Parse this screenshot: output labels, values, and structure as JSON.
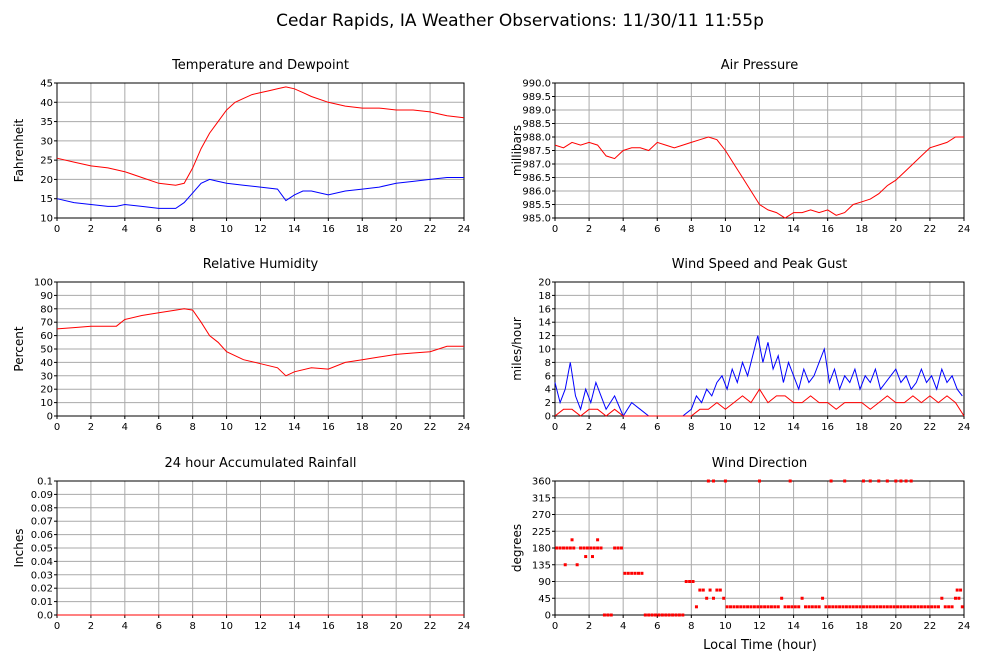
{
  "title": "Cedar Rapids, IA Weather Observations: 11/30/11 11:55p",
  "xlabel": "Local Time (hour)",
  "colors": {
    "red": "#ff0000",
    "blue": "#0000ff",
    "grid": "#aaaaaa"
  },
  "chart_data": [
    {
      "id": "temp",
      "type": "line",
      "title": "Temperature and Dewpoint",
      "ylabel": "Fahrenheit",
      "xlim": [
        0,
        24
      ],
      "ylim": [
        10,
        45
      ],
      "yticks": [
        "10",
        "15",
        "20",
        "25",
        "30",
        "35",
        "40",
        "45"
      ],
      "xticks": [
        "0",
        "2",
        "4",
        "6",
        "8",
        "10",
        "12",
        "14",
        "16",
        "18",
        "20",
        "22",
        "24"
      ],
      "grid": true,
      "series": [
        {
          "color": "#ff0000",
          "x": [
            0,
            1,
            2,
            3,
            4,
            5,
            6,
            7,
            7.5,
            8,
            8.5,
            9,
            9.5,
            10,
            10.5,
            11,
            11.5,
            12,
            12.5,
            13,
            13.5,
            14,
            14.5,
            15,
            16,
            17,
            18,
            19,
            20,
            21,
            22,
            22.5,
            23,
            24
          ],
          "y": [
            25.5,
            24.5,
            23.5,
            23,
            22,
            20.5,
            19,
            18.5,
            19,
            23,
            28,
            32,
            35,
            38,
            40,
            41,
            42,
            42.5,
            43,
            43.5,
            44,
            43.5,
            42.5,
            41.5,
            40,
            39,
            38.5,
            38.5,
            38,
            38,
            37.5,
            37,
            36.5,
            36
          ]
        },
        {
          "color": "#0000ff",
          "x": [
            0,
            1,
            2,
            3,
            3.5,
            4,
            5,
            6,
            7,
            7.5,
            8,
            8.5,
            9,
            9.5,
            10,
            11,
            12,
            13,
            13.5,
            14,
            14.5,
            15,
            16,
            17,
            18,
            19,
            20,
            21,
            22,
            23,
            24
          ],
          "y": [
            15,
            14,
            13.5,
            13,
            13,
            13.5,
            13,
            12.5,
            12.5,
            14,
            16.5,
            19,
            20,
            19.5,
            19,
            18.5,
            18,
            17.5,
            14.5,
            16,
            17,
            17,
            16,
            17,
            17.5,
            18,
            19,
            19.5,
            20,
            20.5,
            20.5
          ]
        }
      ]
    },
    {
      "id": "pressure",
      "type": "line",
      "title": "Air Pressure",
      "ylabel": "millibars",
      "xlim": [
        0,
        24
      ],
      "ylim": [
        985.0,
        990.0
      ],
      "yticks": [
        "985.0",
        "985.5",
        "986.0",
        "986.5",
        "987.0",
        "987.5",
        "988.0",
        "988.5",
        "989.0",
        "989.5",
        "990.0"
      ],
      "xticks": [
        "0",
        "2",
        "4",
        "6",
        "8",
        "10",
        "12",
        "14",
        "16",
        "18",
        "20",
        "22",
        "24"
      ],
      "grid": true,
      "series": [
        {
          "color": "#ff0000",
          "x": [
            0,
            0.5,
            1,
            1.5,
            2,
            2.5,
            3,
            3.5,
            4,
            4.5,
            5,
            5.5,
            6,
            6.5,
            7,
            7.5,
            8,
            8.5,
            9,
            9.5,
            10,
            10.5,
            11,
            11.5,
            12,
            12.5,
            13,
            13.5,
            14,
            14.5,
            15,
            15.5,
            16,
            16.5,
            17,
            17.5,
            18,
            18.5,
            19,
            19.5,
            20,
            20.5,
            21,
            21.5,
            22,
            22.5,
            23,
            23.5,
            24
          ],
          "y": [
            987.7,
            987.6,
            987.8,
            987.7,
            987.8,
            987.7,
            987.3,
            987.2,
            987.5,
            987.6,
            987.6,
            987.5,
            987.8,
            987.7,
            987.6,
            987.7,
            987.8,
            987.9,
            988.0,
            987.9,
            987.5,
            987.0,
            986.5,
            986.0,
            985.5,
            985.3,
            985.2,
            985.0,
            985.2,
            985.2,
            985.3,
            985.2,
            985.3,
            985.1,
            985.2,
            985.5,
            985.6,
            985.7,
            985.9,
            986.2,
            986.4,
            986.7,
            987.0,
            987.3,
            987.6,
            987.7,
            987.8,
            988.0,
            988.0
          ]
        }
      ]
    },
    {
      "id": "humidity",
      "type": "line",
      "title": "Relative Humidity",
      "ylabel": "Percent",
      "xlim": [
        0,
        24
      ],
      "ylim": [
        0,
        100
      ],
      "yticks": [
        "0",
        "10",
        "20",
        "30",
        "40",
        "50",
        "60",
        "70",
        "80",
        "90",
        "100"
      ],
      "xticks": [
        "0",
        "2",
        "4",
        "6",
        "8",
        "10",
        "12",
        "14",
        "16",
        "18",
        "20",
        "22",
        "24"
      ],
      "grid": true,
      "series": [
        {
          "color": "#ff0000",
          "x": [
            0,
            1,
            2,
            3,
            3.5,
            4,
            5,
            6,
            7,
            7.5,
            8,
            8.5,
            9,
            9.5,
            10,
            11,
            12,
            13,
            13.5,
            14,
            15,
            16,
            17,
            18,
            19,
            20,
            21,
            22,
            23,
            24
          ],
          "y": [
            65,
            66,
            67,
            67,
            67,
            72,
            75,
            77,
            79,
            80,
            79,
            70,
            60,
            55,
            48,
            42,
            39,
            36,
            30,
            33,
            36,
            35,
            40,
            42,
            44,
            46,
            47,
            48,
            52,
            52
          ]
        }
      ]
    },
    {
      "id": "wind",
      "type": "line",
      "title": "Wind Speed and Peak Gust",
      "ylabel": "miles/hour",
      "xlim": [
        0,
        24
      ],
      "ylim": [
        0,
        20
      ],
      "yticks": [
        "0",
        "2",
        "4",
        "6",
        "8",
        "10",
        "12",
        "14",
        "16",
        "18",
        "20"
      ],
      "xticks": [
        "0",
        "2",
        "4",
        "6",
        "8",
        "10",
        "12",
        "14",
        "16",
        "18",
        "20",
        "22",
        "24"
      ],
      "grid": true,
      "series": [
        {
          "color": "#0000ff",
          "x": [
            0,
            0.3,
            0.6,
            0.9,
            1.2,
            1.5,
            1.8,
            2.1,
            2.4,
            2.7,
            3.0,
            3.5,
            4.0,
            4.5,
            5.0,
            5.5,
            6,
            7,
            7.5,
            8.0,
            8.3,
            8.6,
            8.9,
            9.2,
            9.5,
            9.8,
            10.1,
            10.4,
            10.7,
            11.0,
            11.3,
            11.6,
            11.9,
            12.2,
            12.5,
            12.8,
            13.1,
            13.4,
            13.7,
            14.0,
            14.3,
            14.6,
            14.9,
            15.2,
            15.5,
            15.8,
            16.1,
            16.4,
            16.7,
            17.0,
            17.3,
            17.6,
            17.9,
            18.2,
            18.5,
            18.8,
            19.1,
            19.4,
            19.7,
            20.0,
            20.3,
            20.6,
            20.9,
            21.2,
            21.5,
            21.8,
            22.1,
            22.4,
            22.7,
            23.0,
            23.3,
            23.6,
            23.9
          ],
          "y": [
            5,
            2,
            4,
            8,
            3,
            1,
            4,
            2,
            5,
            3,
            1,
            3,
            0,
            2,
            1,
            0,
            0,
            0,
            0,
            1,
            3,
            2,
            4,
            3,
            5,
            6,
            4,
            7,
            5,
            8,
            6,
            9,
            12,
            8,
            11,
            7,
            9,
            5,
            8,
            6,
            4,
            7,
            5,
            6,
            8,
            10,
            5,
            7,
            4,
            6,
            5,
            7,
            4,
            6,
            5,
            7,
            4,
            5,
            6,
            7,
            5,
            6,
            4,
            5,
            7,
            5,
            6,
            4,
            7,
            5,
            6,
            4,
            3
          ]
        },
        {
          "color": "#ff0000",
          "x": [
            0,
            0.5,
            1,
            1.5,
            2,
            2.5,
            3,
            3.5,
            4,
            5,
            6,
            7,
            8,
            8.5,
            9,
            9.5,
            10,
            10.5,
            11,
            11.5,
            12,
            12.5,
            13,
            13.5,
            14,
            14.5,
            15,
            15.5,
            16,
            16.5,
            17,
            17.5,
            18,
            18.5,
            19,
            19.5,
            20,
            20.5,
            21,
            21.5,
            22,
            22.5,
            23,
            23.5,
            24
          ],
          "y": [
            0,
            1,
            1,
            0,
            1,
            1,
            0,
            1,
            0,
            0,
            0,
            0,
            0,
            1,
            1,
            2,
            1,
            2,
            3,
            2,
            4,
            2,
            3,
            3,
            2,
            2,
            3,
            2,
            2,
            1,
            2,
            2,
            2,
            1,
            2,
            3,
            2,
            2,
            3,
            2,
            3,
            2,
            3,
            2,
            0
          ]
        }
      ]
    },
    {
      "id": "rain",
      "type": "line",
      "title": "24 hour Accumulated Rainfall",
      "ylabel": "Inches",
      "xlim": [
        0,
        24
      ],
      "ylim": [
        0.0,
        0.1
      ],
      "yticks": [
        "0.0",
        "0.01",
        "0.02",
        "0.03",
        "0.04",
        "0.05",
        "0.06",
        "0.07",
        "0.08",
        "0.09",
        "0.1"
      ],
      "xticks": [
        "0",
        "2",
        "4",
        "6",
        "8",
        "10",
        "12",
        "14",
        "16",
        "18",
        "20",
        "22",
        "24"
      ],
      "grid": true,
      "series": [
        {
          "color": "#ff0000",
          "x": [
            0,
            24
          ],
          "y": [
            0,
            0
          ]
        }
      ]
    },
    {
      "id": "direction",
      "type": "scatter",
      "title": "Wind Direction",
      "ylabel": "degrees",
      "xlim": [
        0,
        24
      ],
      "ylim": [
        0,
        360
      ],
      "yticks": [
        "0",
        "45",
        "90",
        "135",
        "180",
        "225",
        "270",
        "315",
        "360"
      ],
      "xticks": [
        "0",
        "2",
        "4",
        "6",
        "8",
        "10",
        "12",
        "14",
        "16",
        "18",
        "20",
        "22",
        "24"
      ],
      "grid": true,
      "series": [
        {
          "color": "#ff0000",
          "x": [
            0.1,
            0.3,
            0.5,
            0.7,
            0.9,
            1.1,
            1.3,
            1.5,
            1.7,
            1.9,
            2.1,
            2.3,
            2.5,
            2.7,
            2.9,
            3.1,
            3.3,
            3.5,
            3.7,
            3.9,
            4.1,
            4.3,
            4.5,
            4.7,
            4.9,
            5.1,
            5.3,
            5.5,
            5.7,
            5.9,
            6.1,
            6.3,
            6.5,
            6.7,
            6.9,
            7.1,
            7.3,
            7.5,
            7.7,
            7.9,
            8.1,
            8.3,
            8.5,
            8.7,
            8.9,
            9.1,
            9.3,
            9.5,
            9.7,
            9.9,
            10.1,
            10.3,
            10.5,
            10.7,
            10.9,
            11.1,
            11.3,
            11.5,
            11.7,
            11.9,
            12.1,
            12.3,
            12.5,
            12.7,
            12.9,
            13.1,
            13.3,
            13.5,
            13.7,
            13.9,
            14.1,
            14.3,
            14.5,
            14.7,
            14.9,
            15.1,
            15.3,
            15.5,
            15.7,
            15.9,
            16.1,
            16.3,
            16.5,
            16.7,
            16.9,
            17.1,
            17.3,
            17.5,
            17.7,
            17.9,
            18.1,
            18.3,
            18.5,
            18.7,
            18.9,
            19.1,
            19.3,
            19.5,
            19.7,
            19.9,
            20.1,
            20.3,
            20.5,
            20.7,
            20.9,
            21.1,
            21.3,
            21.5,
            21.7,
            21.9,
            22.1,
            22.3,
            22.5,
            22.7,
            22.9,
            23.1,
            23.3,
            23.5,
            23.7,
            23.9,
            9.0,
            9.3,
            10.0,
            12.0,
            13.8,
            16.2,
            17.0,
            18.1,
            18.5,
            19.0,
            19.5,
            20.0,
            20.3,
            20.6,
            20.9,
            0.6,
            1.0,
            1.8,
            2.2,
            2.5,
            23.6,
            23.8
          ],
          "y": [
            180,
            180,
            180,
            180,
            180,
            180,
            135,
            180,
            180,
            180,
            180,
            180,
            180,
            180,
            0,
            0,
            0,
            180,
            180,
            180,
            112,
            112,
            112,
            112,
            112,
            112,
            0,
            0,
            0,
            0,
            0,
            0,
            0,
            0,
            0,
            0,
            0,
            0,
            90,
            90,
            90,
            22,
            67,
            67,
            45,
            67,
            45,
            67,
            67,
            45,
            22,
            22,
            22,
            22,
            22,
            22,
            22,
            22,
            22,
            22,
            22,
            22,
            22,
            22,
            22,
            22,
            45,
            22,
            22,
            22,
            22,
            22,
            45,
            22,
            22,
            22,
            22,
            22,
            45,
            22,
            22,
            22,
            22,
            22,
            22,
            22,
            22,
            22,
            22,
            22,
            22,
            22,
            22,
            22,
            22,
            22,
            22,
            22,
            22,
            22,
            22,
            22,
            22,
            22,
            22,
            22,
            22,
            22,
            22,
            22,
            22,
            22,
            22,
            45,
            22,
            22,
            22,
            45,
            45,
            22,
            360,
            360,
            360,
            360,
            360,
            360,
            360,
            360,
            360,
            360,
            360,
            360,
            360,
            360,
            360,
            135,
            202,
            157,
            157,
            202,
            67,
            67
          ]
        }
      ]
    }
  ]
}
